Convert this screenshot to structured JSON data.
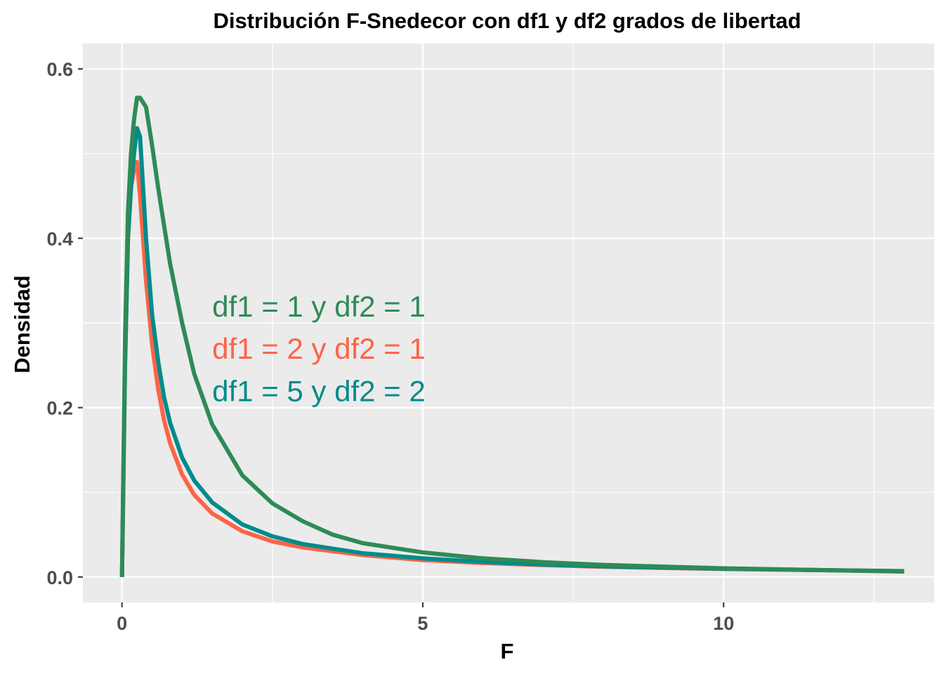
{
  "chart_data": {
    "type": "line",
    "title": "Distribución F-Snedecor con df1 y df2 grados de libertad",
    "xlabel": "F",
    "ylabel": "Densidad",
    "xlim": [
      -0.65,
      13.5
    ],
    "ylim": [
      -0.03,
      0.63
    ],
    "x_ticks": [
      0,
      5,
      10
    ],
    "x_tick_labels": [
      "0",
      "5",
      "10"
    ],
    "y_ticks": [
      0.0,
      0.2,
      0.4,
      0.6
    ],
    "y_tick_labels": [
      "0.0",
      "0.2",
      "0.4",
      "0.6"
    ],
    "grid": true,
    "legend": "none",
    "background": "#EBEBEB",
    "annotations": [
      {
        "text": "df1 = 1 y df2 = 1",
        "x": 1.5,
        "y": 0.32,
        "color": "#2E8B57"
      },
      {
        "text": "df1 = 2 y df2 = 1",
        "x": 1.5,
        "y": 0.27,
        "color": "#FF6347"
      },
      {
        "text": "df1 = 5 y df2 = 2",
        "x": 1.5,
        "y": 0.22,
        "color": "#008B8B"
      }
    ],
    "series": [
      {
        "color": "#FF6347",
        "x": [
          0,
          0.05,
          0.1,
          0.15,
          0.2,
          0.25,
          0.3,
          0.4,
          0.5,
          0.6,
          0.7,
          0.8,
          1.0,
          1.2,
          1.5,
          2.0,
          2.5,
          3.0,
          4.0,
          5.0,
          6.0,
          7.0,
          8.0,
          10.0,
          13.0
        ],
        "values": [
          0,
          0.25,
          0.4,
          0.46,
          0.48,
          0.49,
          0.45,
          0.35,
          0.275,
          0.222,
          0.185,
          0.158,
          0.121,
          0.097,
          0.075,
          0.054,
          0.042,
          0.035,
          0.026,
          0.02,
          0.0165,
          0.014,
          0.012,
          0.0095,
          0.007
        ]
      },
      {
        "color": "#008B8B",
        "x": [
          0,
          0.05,
          0.1,
          0.15,
          0.2,
          0.25,
          0.3,
          0.4,
          0.5,
          0.6,
          0.7,
          0.8,
          1.0,
          1.2,
          1.5,
          2.0,
          2.5,
          3.0,
          4.0,
          5.0,
          6.0,
          7.0,
          8.0,
          10.0,
          13.0
        ],
        "values": [
          0,
          0.25,
          0.4,
          0.46,
          0.5,
          0.53,
          0.52,
          0.4,
          0.31,
          0.255,
          0.212,
          0.182,
          0.141,
          0.114,
          0.088,
          0.062,
          0.048,
          0.039,
          0.028,
          0.022,
          0.0178,
          0.0148,
          0.0126,
          0.0097,
          0.0068
        ]
      },
      {
        "color": "#2E8B57",
        "x": [
          0,
          0.05,
          0.1,
          0.15,
          0.2,
          0.25,
          0.3,
          0.4,
          0.5,
          0.6,
          0.7,
          0.8,
          1.0,
          1.2,
          1.5,
          2.0,
          2.5,
          3.0,
          3.5,
          4.0,
          5.0,
          6.0,
          7.0,
          8.0,
          10.0,
          13.0
        ],
        "values": [
          0,
          0.28,
          0.43,
          0.5,
          0.54,
          0.566,
          0.566,
          0.555,
          0.51,
          0.46,
          0.415,
          0.37,
          0.3,
          0.24,
          0.18,
          0.12,
          0.087,
          0.066,
          0.05,
          0.04,
          0.029,
          0.022,
          0.0175,
          0.0143,
          0.0102,
          0.0064
        ]
      }
    ]
  }
}
